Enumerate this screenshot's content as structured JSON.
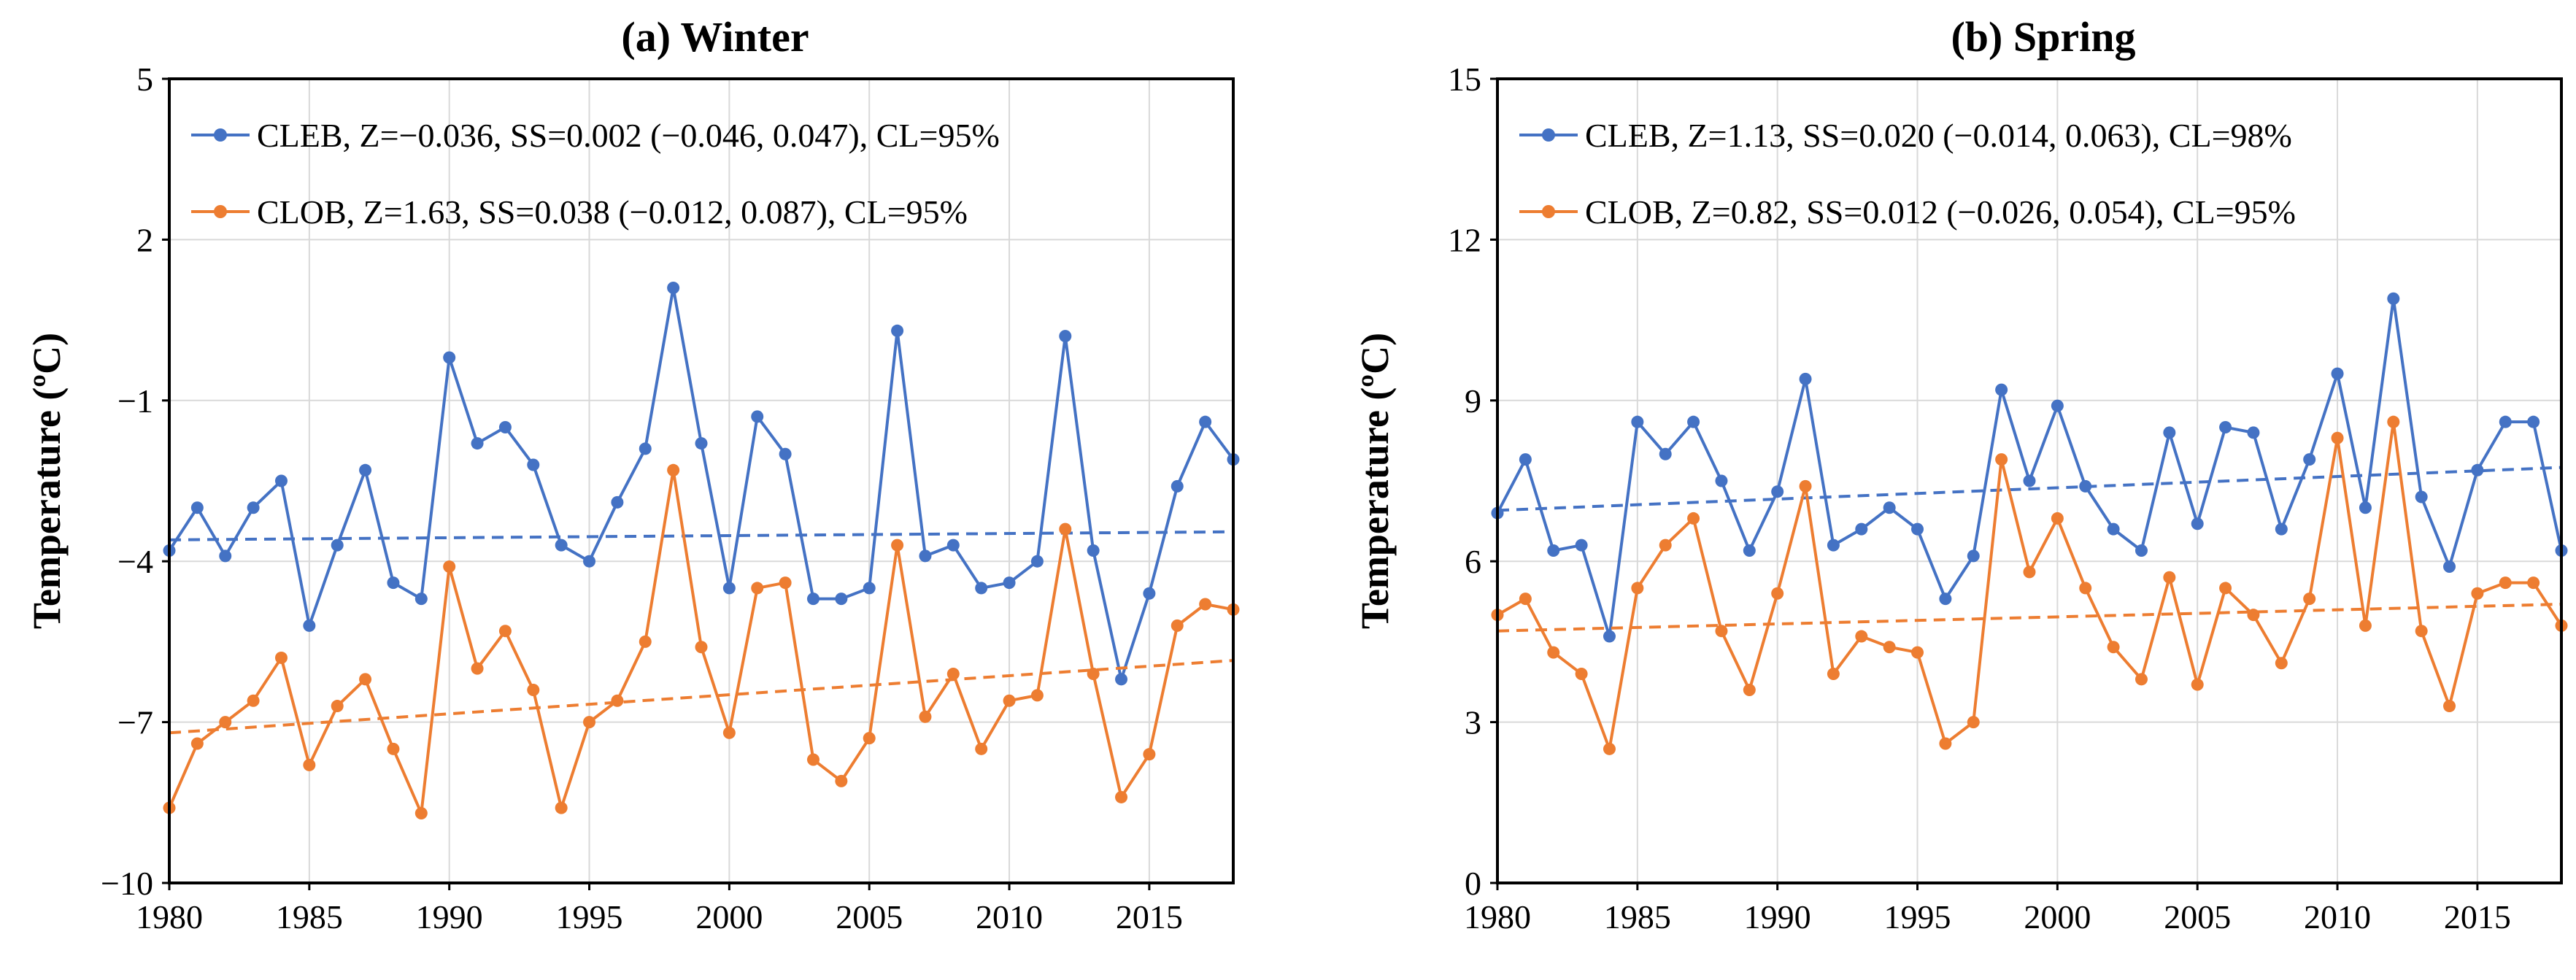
{
  "chart_data": [
    {
      "type": "line",
      "title": "(a) Winter",
      "ylabel": "Temperature (ºC)",
      "xlabel": "",
      "xlim": [
        1980,
        2018
      ],
      "ylim": [
        -10,
        5
      ],
      "yticks": [
        5,
        2,
        -1,
        -4,
        -7,
        -10
      ],
      "xticks": [
        1980,
        1985,
        1990,
        1995,
        2000,
        2005,
        2010,
        2015
      ],
      "grid": "horizontal",
      "legend_position": "top-left",
      "x": [
        1980,
        1981,
        1982,
        1983,
        1984,
        1985,
        1986,
        1987,
        1988,
        1989,
        1990,
        1991,
        1992,
        1993,
        1994,
        1995,
        1996,
        1997,
        1998,
        1999,
        2000,
        2001,
        2002,
        2003,
        2004,
        2005,
        2006,
        2007,
        2008,
        2009,
        2010,
        2011,
        2012,
        2013,
        2014,
        2015,
        2016,
        2017,
        2018
      ],
      "series": [
        {
          "name": "CLEB, Z=−0.036, SS=0.002 (−0.046, 0.047), CL=95%",
          "color": "#4472c4",
          "values": [
            -3.8,
            -3.0,
            -3.9,
            -3.0,
            -2.5,
            -5.2,
            -3.7,
            -2.3,
            -4.4,
            -4.7,
            -0.2,
            -1.8,
            -1.5,
            -2.2,
            -3.7,
            -4.0,
            -2.9,
            -1.9,
            1.1,
            -1.8,
            -4.5,
            -1.3,
            -2.0,
            -4.7,
            -4.7,
            -4.5,
            0.3,
            -3.9,
            -3.7,
            -4.5,
            -4.4,
            -4.0,
            0.2,
            -3.8,
            -6.2,
            -4.6,
            -2.6,
            -1.4,
            -2.1
          ],
          "trend": [
            -3.6,
            -3.45
          ]
        },
        {
          "name": "CLOB, Z=1.63, SS=0.038 (−0.012, 0.087), CL=95%",
          "color": "#ed7d31",
          "values": [
            -8.6,
            -7.4,
            -7.0,
            -6.6,
            -5.8,
            -7.8,
            -6.7,
            -6.2,
            -7.5,
            -8.7,
            -4.1,
            -6.0,
            -5.3,
            -6.4,
            -8.6,
            -7.0,
            -6.6,
            -5.5,
            -2.3,
            -5.6,
            -7.2,
            -4.5,
            -4.4,
            -7.7,
            -8.1,
            -7.3,
            -3.7,
            -6.9,
            -6.1,
            -7.5,
            -6.6,
            -6.5,
            -3.4,
            -6.1,
            -8.4,
            -7.6,
            -5.2,
            -4.8,
            -4.9
          ],
          "trend": [
            -7.2,
            -5.85
          ]
        }
      ]
    },
    {
      "type": "line",
      "title": "(b) Spring",
      "ylabel": "Temperature (ºC)",
      "xlabel": "",
      "xlim": [
        1980,
        2018
      ],
      "ylim": [
        0,
        15
      ],
      "yticks": [
        15,
        12,
        9,
        6,
        3,
        0
      ],
      "xticks": [
        1980,
        1985,
        1990,
        1995,
        2000,
        2005,
        2010,
        2015
      ],
      "grid": "horizontal",
      "legend_position": "top-left",
      "x": [
        1980,
        1981,
        1982,
        1983,
        1984,
        1985,
        1986,
        1987,
        1988,
        1989,
        1990,
        1991,
        1992,
        1993,
        1994,
        1995,
        1996,
        1997,
        1998,
        1999,
        2000,
        2001,
        2002,
        2003,
        2004,
        2005,
        2006,
        2007,
        2008,
        2009,
        2010,
        2011,
        2012,
        2013,
        2014,
        2015,
        2016,
        2017,
        2018
      ],
      "series": [
        {
          "name": "CLEB, Z=1.13, SS=0.020 (−0.014, 0.063), CL=98%",
          "color": "#4472c4",
          "values": [
            6.9,
            7.9,
            6.2,
            6.3,
            4.6,
            8.6,
            8.0,
            8.6,
            7.5,
            6.2,
            7.3,
            9.4,
            6.3,
            6.6,
            7.0,
            6.6,
            5.3,
            6.1,
            9.2,
            7.5,
            8.9,
            7.4,
            6.6,
            6.2,
            8.4,
            6.7,
            8.5,
            8.4,
            6.6,
            7.9,
            9.5,
            7.0,
            10.9,
            7.2,
            5.9,
            7.7,
            8.6,
            8.6,
            6.2
          ],
          "trend": [
            6.95,
            7.75
          ]
        },
        {
          "name": "CLOB, Z=0.82, SS=0.012 (−0.026, 0.054), CL=95%",
          "color": "#ed7d31",
          "values": [
            5.0,
            5.3,
            4.3,
            3.9,
            2.5,
            5.5,
            6.3,
            6.8,
            4.7,
            3.6,
            5.4,
            7.4,
            3.9,
            4.6,
            4.4,
            4.3,
            2.6,
            3.0,
            7.9,
            5.8,
            6.8,
            5.5,
            4.4,
            3.8,
            5.7,
            3.7,
            5.5,
            5.0,
            4.1,
            5.3,
            8.3,
            4.8,
            8.6,
            4.7,
            3.3,
            5.4,
            5.6,
            5.6,
            4.8
          ],
          "trend": [
            4.7,
            5.2
          ]
        }
      ]
    }
  ]
}
